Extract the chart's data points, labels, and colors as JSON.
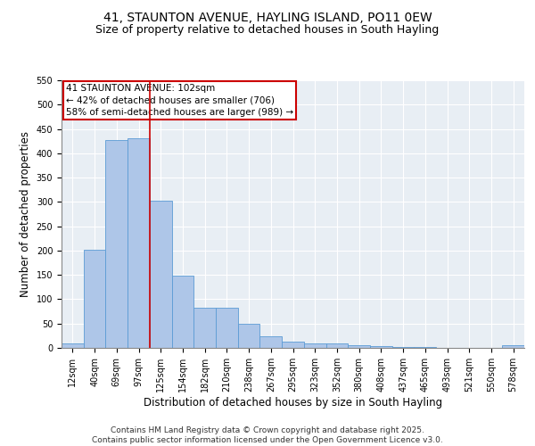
{
  "title_line1": "41, STAUNTON AVENUE, HAYLING ISLAND, PO11 0EW",
  "title_line2": "Size of property relative to detached houses in South Hayling",
  "xlabel": "Distribution of detached houses by size in South Hayling",
  "ylabel": "Number of detached properties",
  "categories": [
    "12sqm",
    "40sqm",
    "69sqm",
    "97sqm",
    "125sqm",
    "154sqm",
    "182sqm",
    "210sqm",
    "238sqm",
    "267sqm",
    "295sqm",
    "323sqm",
    "352sqm",
    "380sqm",
    "408sqm",
    "437sqm",
    "465sqm",
    "493sqm",
    "521sqm",
    "550sqm",
    "578sqm"
  ],
  "values": [
    10,
    202,
    428,
    430,
    303,
    148,
    82,
    82,
    50,
    24,
    12,
    10,
    9,
    5,
    3,
    2,
    1,
    0,
    0,
    0,
    5
  ],
  "bar_color": "#aec6e8",
  "bar_edge_color": "#5b9bd5",
  "annotation_text": "41 STAUNTON AVENUE: 102sqm\n← 42% of detached houses are smaller (706)\n58% of semi-detached houses are larger (989) →",
  "annotation_box_color": "#ffffff",
  "annotation_box_edge_color": "#cc0000",
  "vline_color": "#cc0000",
  "ylim": [
    0,
    550
  ],
  "yticks": [
    0,
    50,
    100,
    150,
    200,
    250,
    300,
    350,
    400,
    450,
    500,
    550
  ],
  "background_color": "#e8eef4",
  "grid_color": "#ffffff",
  "footer_text": "Contains HM Land Registry data © Crown copyright and database right 2025.\nContains public sector information licensed under the Open Government Licence v3.0.",
  "title_fontsize": 10,
  "subtitle_fontsize": 9,
  "axis_label_fontsize": 8.5,
  "tick_fontsize": 7,
  "footer_fontsize": 6.5,
  "annotation_fontsize": 7.5
}
